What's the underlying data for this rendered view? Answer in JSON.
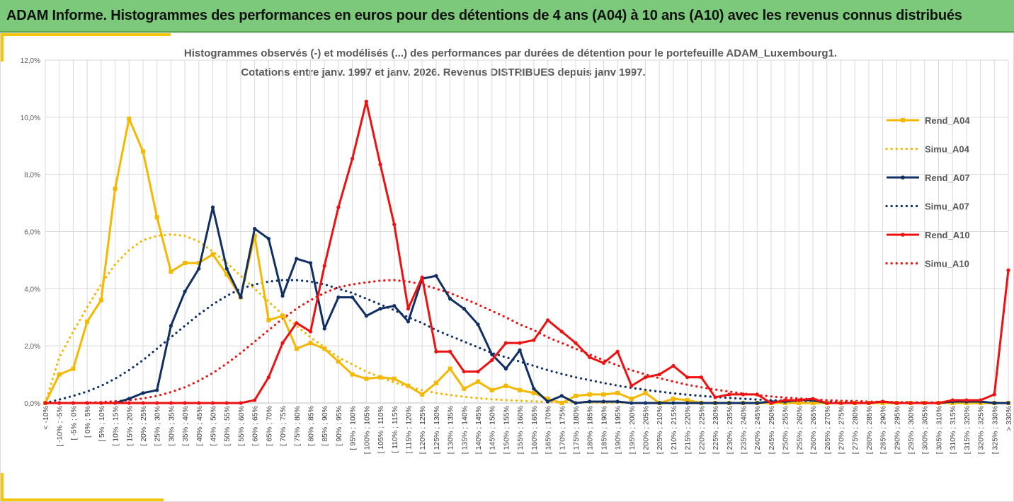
{
  "header": {
    "title": "ADAM Informe. Histogrammes des performances en euros pour des détentions de 4 ans (A04) à 10 ans (A10) avec les revenus connus distribués"
  },
  "colors": {
    "header_bg": "#7dc97b",
    "accent": "#f5c60b",
    "A04": "#f5b800",
    "A07": "#112f63",
    "A10": "#ee1111",
    "grid": "#d9d9d9"
  },
  "chart_data": {
    "type": "line",
    "title_lines": [
      "Histogrammes observés (-) et modélisés (...) des performances par durées de détention pour le portefeuille ADAM_Luxembourg1.",
      "Cotations entre janv. 1997 et janv. 2026. Revenus DISTRIBUES depuis janv 1997."
    ],
    "y_ticks": [
      "0,0%",
      "2,0%",
      "4,0%",
      "6,0%",
      "8,0%",
      "10,0%",
      "12,0%"
    ],
    "ylim": [
      0,
      12
    ],
    "categories": [
      "< -10%",
      "[ -10% ; -5%",
      "[ -5% ; 0%",
      "[ 0% ; 5%",
      "[ 5% ; 10%",
      "[ 10% ; 15%",
      "[ 15% ; 20%",
      "[ 20% ; 25%",
      "[ 25% ; 30%",
      "[ 30% ; 35%",
      "[ 35% ; 40%",
      "[ 40% ; 45%",
      "[ 45% ; 50%",
      "[ 50% ; 55%",
      "[ 55% ; 60%",
      "[ 60% ; 65%",
      "[ 65% ; 70%",
      "[ 70% ; 75%",
      "[ 75% ; 80%",
      "[ 80% ; 85%",
      "[ 85% ; 90%",
      "[ 90% ; 95%",
      "[ 95% ; 100%",
      "[ 100% ; 105%",
      "[ 105% ; 110%",
      "[ 110% ; 115%",
      "[ 115% ; 120%",
      "[ 120% ; 125%",
      "[ 125% ; 130%",
      "[ 130% ; 135%",
      "[ 135% ; 140%",
      "[ 140% ; 145%",
      "[ 145% ; 150%",
      "[ 150% ; 155%",
      "[ 155% ; 160%",
      "[ 160% ; 165%",
      "[ 165% ; 170%",
      "[ 170% ; 175%",
      "[ 175% ; 180%",
      "[ 180% ; 185%",
      "[ 185% ; 190%",
      "[ 190% ; 195%",
      "[ 195% ; 200%",
      "[ 200% ; 205%",
      "[ 205% ; 210%",
      "[ 210% ; 215%",
      "[ 215% ; 220%",
      "[ 220% ; 225%",
      "[ 225% ; 230%",
      "[ 230% ; 235%",
      "[ 235% ; 240%",
      "[ 240% ; 245%",
      "[ 245% ; 250%",
      "[ 250% ; 255%",
      "[ 255% ; 260%",
      "[ 260% ; 265%",
      "[ 265% ; 270%",
      "[ 270% ; 275%",
      "[ 275% ; 280%",
      "[ 280% ; 285%",
      "[ 285% ; 290%",
      "[ 290% ; 295%",
      "[ 295% ; 300%",
      "[ 300% ; 305%",
      "[ 305% ; 310%",
      "[ 310% ; 315%",
      "[ 315% ; 320%",
      "[ 320% ; 325%",
      "[ 325% ; 330%",
      "> 330%"
    ],
    "series": [
      {
        "name": "Rend_A04",
        "style": "solid",
        "marker": "square",
        "color": "#f5b800",
        "values": [
          0.0,
          1.0,
          1.2,
          2.85,
          3.6,
          7.5,
          9.95,
          8.8,
          6.5,
          4.6,
          4.9,
          4.9,
          5.2,
          4.5,
          3.7,
          5.85,
          2.9,
          3.05,
          1.9,
          2.1,
          1.9,
          1.45,
          1.0,
          0.85,
          0.9,
          0.85,
          0.6,
          0.3,
          0.7,
          1.2,
          0.5,
          0.75,
          0.45,
          0.6,
          0.45,
          0.35,
          0.15,
          0.0,
          0.25,
          0.3,
          0.3,
          0.35,
          0.15,
          0.35,
          0.0,
          0.15,
          0.1,
          0.0,
          0.0,
          0.0,
          0.0,
          0.0,
          0.0,
          0.0,
          0.0,
          0.0,
          0.0,
          0.0,
          0.0,
          0.0,
          0.0,
          0.0,
          0.0,
          0.0,
          0.0,
          0.0,
          0.0,
          0.0,
          0.0,
          0.0
        ]
      },
      {
        "name": "Simu_A04",
        "style": "dotted",
        "color": "#f5b800",
        "values": [
          0.0,
          1.6,
          2.5,
          3.35,
          4.15,
          4.85,
          5.35,
          5.7,
          5.85,
          5.9,
          5.85,
          5.65,
          5.3,
          4.9,
          4.45,
          4.0,
          3.55,
          3.1,
          2.7,
          2.3,
          1.95,
          1.6,
          1.35,
          1.1,
          0.9,
          0.72,
          0.57,
          0.45,
          0.35,
          0.28,
          0.22,
          0.17,
          0.13,
          0.1,
          0.08,
          0.06,
          0.04,
          0.03,
          0.02,
          0.02,
          0.01,
          0.01,
          0.0,
          0.0,
          0.0,
          0.0,
          0.0,
          0.0,
          0.0,
          0.0,
          0.0,
          0.0,
          0.0,
          0.0,
          0.0,
          0.0,
          0.0,
          0.0,
          0.0,
          0.0,
          0.0,
          0.0,
          0.0,
          0.0,
          0.0,
          0.0,
          0.0,
          0.0,
          0.0,
          0.0
        ]
      },
      {
        "name": "Rend_A07",
        "style": "solid",
        "marker": "circle",
        "color": "#112f63",
        "values": [
          0.0,
          0.0,
          0.0,
          0.0,
          0.0,
          0.0,
          0.15,
          0.35,
          0.45,
          2.7,
          3.9,
          4.7,
          6.85,
          4.7,
          3.7,
          6.1,
          5.75,
          3.75,
          5.05,
          4.9,
          2.6,
          3.7,
          3.7,
          3.05,
          3.3,
          3.4,
          2.85,
          4.35,
          4.45,
          3.65,
          3.3,
          2.75,
          1.7,
          1.2,
          1.85,
          0.5,
          0.05,
          0.25,
          0.0,
          0.05,
          0.05,
          0.05,
          0.0,
          0.0,
          0.0,
          0.0,
          0.0,
          0.0,
          0.0,
          0.0,
          0.0,
          0.0,
          0.05,
          0.05,
          0.1,
          0.1,
          0.0,
          0.0,
          0.0,
          0.0,
          0.05,
          0.0,
          0.0,
          0.0,
          0.0,
          0.05,
          0.05,
          0.05,
          0.0,
          0.0
        ]
      },
      {
        "name": "Simu_A07",
        "style": "dotted",
        "color": "#112f63",
        "values": [
          0.0,
          0.12,
          0.25,
          0.4,
          0.6,
          0.85,
          1.15,
          1.5,
          1.9,
          2.3,
          2.7,
          3.1,
          3.45,
          3.75,
          4.0,
          4.15,
          4.25,
          4.3,
          4.3,
          4.25,
          4.15,
          4.0,
          3.85,
          3.65,
          3.45,
          3.25,
          3.0,
          2.8,
          2.55,
          2.35,
          2.15,
          1.95,
          1.75,
          1.6,
          1.45,
          1.3,
          1.15,
          1.02,
          0.9,
          0.8,
          0.7,
          0.61,
          0.53,
          0.46,
          0.4,
          0.34,
          0.29,
          0.25,
          0.21,
          0.18,
          0.15,
          0.12,
          0.1,
          0.08,
          0.07,
          0.06,
          0.05,
          0.04,
          0.03,
          0.03,
          0.02,
          0.02,
          0.01,
          0.01,
          0.01,
          0.01,
          0.0,
          0.0,
          0.0,
          0.0
        ]
      },
      {
        "name": "Rend_A10",
        "style": "solid",
        "marker": "circle",
        "color": "#ee1111",
        "values": [
          0.0,
          0.0,
          0.0,
          0.0,
          0.0,
          0.0,
          0.0,
          0.0,
          0.0,
          0.0,
          0.0,
          0.0,
          0.0,
          0.0,
          0.0,
          0.1,
          0.9,
          2.1,
          2.8,
          2.5,
          4.8,
          6.85,
          8.55,
          10.55,
          8.35,
          6.25,
          3.3,
          4.4,
          1.8,
          1.8,
          1.1,
          1.1,
          1.5,
          2.1,
          2.1,
          2.2,
          2.9,
          2.5,
          2.1,
          1.6,
          1.4,
          1.8,
          0.6,
          0.9,
          1.0,
          1.3,
          0.9,
          0.9,
          0.2,
          0.3,
          0.3,
          0.3,
          0.0,
          0.1,
          0.1,
          0.15,
          0.0,
          0.0,
          0.0,
          0.0,
          0.05,
          0.0,
          0.0,
          0.0,
          0.0,
          0.1,
          0.1,
          0.1,
          0.3,
          4.65
        ]
      },
      {
        "name": "Simu_A10",
        "style": "dotted",
        "color": "#ee1111",
        "values": [
          0.0,
          0.0,
          0.0,
          0.01,
          0.03,
          0.06,
          0.1,
          0.16,
          0.25,
          0.38,
          0.55,
          0.78,
          1.05,
          1.38,
          1.75,
          2.15,
          2.55,
          2.95,
          3.3,
          3.6,
          3.85,
          4.05,
          4.15,
          4.22,
          4.28,
          4.3,
          4.25,
          4.15,
          4.0,
          3.85,
          3.65,
          3.45,
          3.22,
          3.0,
          2.75,
          2.55,
          2.3,
          2.1,
          1.9,
          1.7,
          1.5,
          1.32,
          1.15,
          1.0,
          0.87,
          0.75,
          0.64,
          0.55,
          0.47,
          0.4,
          0.33,
          0.28,
          0.23,
          0.19,
          0.16,
          0.13,
          0.1,
          0.08,
          0.07,
          0.05,
          0.04,
          0.03,
          0.03,
          0.02,
          0.02,
          0.01,
          0.01,
          0.01,
          0.0,
          0.0
        ]
      }
    ],
    "legend_position": "right",
    "grid": true
  }
}
